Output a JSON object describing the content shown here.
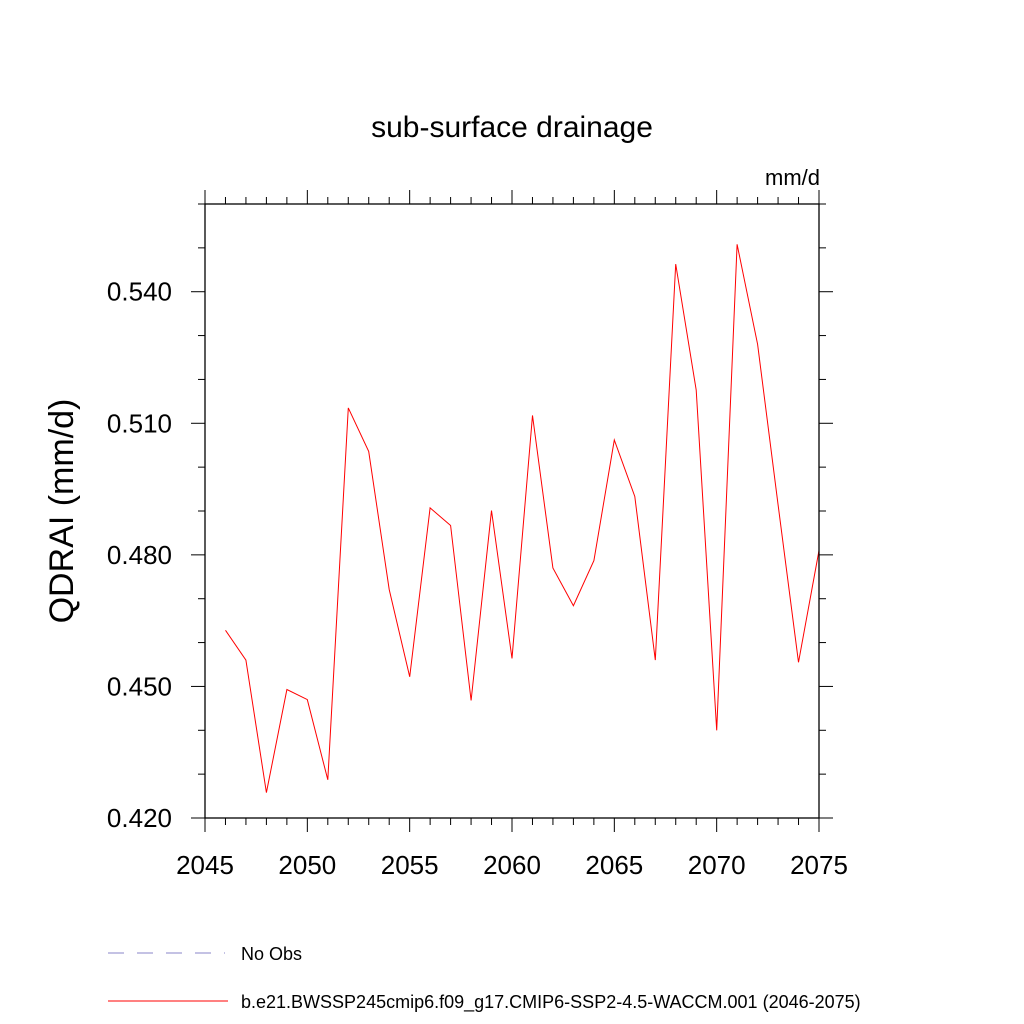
{
  "chart_data": {
    "type": "line",
    "title": "sub-surface drainage",
    "units_label": "mm/d",
    "ylabel": "QDRAI  (mm/d)",
    "xlabel": "",
    "xlim": [
      2045,
      2075
    ],
    "ylim": [
      0.42,
      0.56
    ],
    "x_ticks": [
      2045,
      2050,
      2055,
      2060,
      2065,
      2070,
      2075
    ],
    "y_ticks": [
      0.42,
      0.45,
      0.48,
      0.51,
      0.54
    ],
    "y_tick_labels": [
      "0.420",
      "0.450",
      "0.480",
      "0.510",
      "0.540"
    ],
    "grid": false,
    "legend_position": "bottom",
    "legend": [
      {
        "label": "No Obs",
        "style": "dashed",
        "color": "#8a84c8"
      },
      {
        "label": "b.e21.BWSSP245cmip6.f09_g17.CMIP6-SSP2-4.5-WACCM.001 (2046-2075)",
        "style": "solid",
        "color": "#ff0000"
      }
    ],
    "series": [
      {
        "name": "b.e21.BWSSP245cmip6.f09_g17.CMIP6-SSP2-4.5-WACCM.001 (2046-2075)",
        "color": "#ff0000",
        "x": [
          2046,
          2047,
          2048,
          2049,
          2050,
          2051,
          2052,
          2053,
          2054,
          2055,
          2056,
          2057,
          2058,
          2059,
          2060,
          2061,
          2062,
          2063,
          2064,
          2065,
          2066,
          2067,
          2068,
          2069,
          2070,
          2071,
          2072,
          2073,
          2074,
          2075
        ],
        "values": [
          0.4628,
          0.456,
          0.4258,
          0.4493,
          0.447,
          0.4287,
          0.5135,
          0.5036,
          0.4721,
          0.4522,
          0.4907,
          0.4867,
          0.4468,
          0.4901,
          0.4564,
          0.5118,
          0.477,
          0.4684,
          0.4787,
          0.5062,
          0.4933,
          0.456,
          0.5463,
          0.5176,
          0.44,
          0.5508,
          0.528,
          0.4914,
          0.4555,
          0.481
        ]
      }
    ]
  }
}
